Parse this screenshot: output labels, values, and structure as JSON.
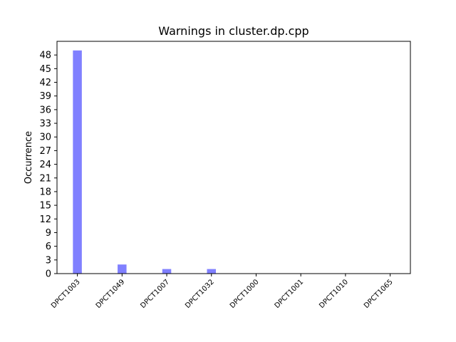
{
  "chart_data": {
    "type": "bar",
    "title": "Warnings in cluster.dp.cpp",
    "xlabel": "",
    "ylabel": "Occurrence",
    "categories": [
      "DPCT1003",
      "DPCT1049",
      "DPCT1007",
      "DPCT1032",
      "DPCT1000",
      "DPCT1001",
      "DPCT1010",
      "DPCT1065"
    ],
    "values": [
      49,
      2,
      1,
      1,
      0,
      0,
      0,
      0
    ],
    "ylim": [
      0,
      51
    ],
    "yticks": [
      0,
      3,
      6,
      9,
      12,
      15,
      18,
      21,
      24,
      27,
      30,
      33,
      36,
      39,
      42,
      45,
      48
    ],
    "bar_color": "#8080ff",
    "grid": false,
    "legend": "none"
  }
}
